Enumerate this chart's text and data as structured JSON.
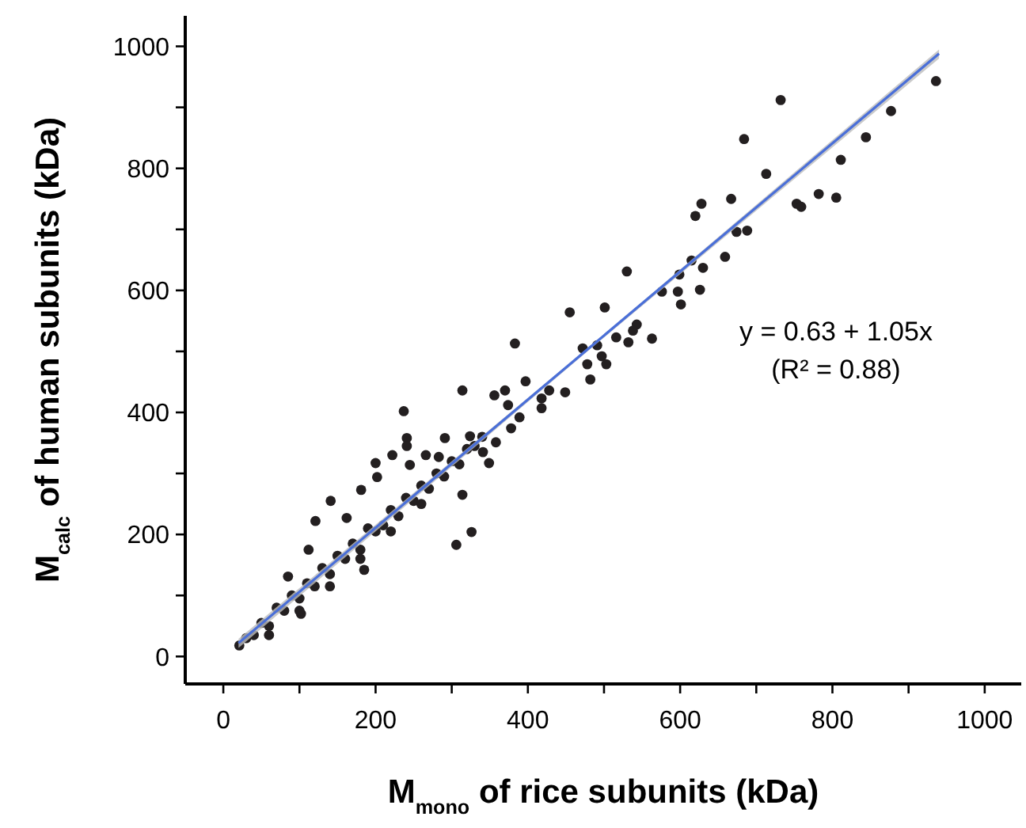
{
  "chart_data": {
    "type": "scatter",
    "xlabel": "M$_{mono}$ of rice subunits (kDa)",
    "ylabel": "M$_{calc}$ of human subunits (kDa)",
    "xlim": [
      -50,
      1048
    ],
    "ylim": [
      -45,
      1050
    ],
    "xticks": [
      0,
      {
        "value": 100,
        "label": null
      },
      200,
      {
        "value": 300,
        "label": null
      },
      400,
      {
        "value": 500,
        "label": null
      },
      600,
      {
        "value": 700,
        "label": null
      },
      800,
      {
        "value": 900,
        "label": null
      },
      1000
    ],
    "yticks": [
      0,
      {
        "value": 100,
        "label": null
      },
      200,
      {
        "value": 300,
        "label": null
      },
      400,
      {
        "value": 500,
        "label": null
      },
      600,
      {
        "value": 700,
        "label": null
      },
      800,
      {
        "value": 900,
        "label": null
      },
      1000
    ],
    "grid": false,
    "annotations": [
      "y = 0.63 + 1.05x",
      "(R² = 0.88)"
    ],
    "series": [
      {
        "marker": "circle",
        "color": "#231f20",
        "x": [
          936,
          732,
          877,
          684,
          844,
          811,
          713,
          782,
          805,
          753,
          759,
          667,
          628,
          620,
          674,
          688,
          615,
          659,
          630,
          599,
          530,
          576,
          597,
          626,
          601,
          501,
          455,
          543,
          538,
          516,
          563,
          532,
          491,
          472,
          383,
          497,
          478,
          503,
          482,
          449,
          428,
          397,
          418,
          418,
          370,
          356,
          374,
          389,
          378,
          358,
          349,
          341,
          314,
          237,
          241,
          241,
          291,
          324,
          222,
          200,
          202,
          245,
          266,
          283,
          181,
          141,
          121,
          162,
          314,
          326,
          306,
          112,
          85,
          185,
          102,
          21,
          30,
          40,
          50,
          60,
          70,
          80,
          90,
          100,
          110,
          120,
          130,
          140,
          150,
          160,
          170,
          180,
          190,
          200,
          210,
          220,
          230,
          240,
          250,
          260,
          270,
          280,
          290,
          300,
          310,
          320,
          330,
          340,
          60,
          100,
          140,
          180,
          220,
          260
        ],
        "values": [
          943,
          912,
          894,
          848,
          851,
          814,
          791,
          758,
          752,
          742,
          737,
          750,
          742,
          722,
          696,
          698,
          649,
          655,
          637,
          626,
          631,
          598,
          598,
          601,
          577,
          572,
          564,
          544,
          534,
          523,
          521,
          515,
          510,
          505,
          513,
          492,
          479,
          479,
          454,
          433,
          436,
          451,
          423,
          407,
          436,
          428,
          412,
          392,
          374,
          351,
          317,
          335,
          436,
          402,
          358,
          345,
          358,
          361,
          330,
          317,
          294,
          314,
          330,
          327,
          273,
          255,
          222,
          227,
          265,
          204,
          183,
          175,
          131,
          142,
          70,
          18,
          30,
          35,
          55,
          50,
          80,
          75,
          100,
          95,
          120,
          115,
          145,
          135,
          165,
          160,
          185,
          175,
          210,
          205,
          215,
          240,
          230,
          260,
          255,
          280,
          275,
          300,
          295,
          320,
          315,
          340,
          345,
          360,
          35,
          75,
          115,
          160,
          205,
          250
        ]
      },
      {
        "type": "line",
        "color": "#4a6fd8",
        "x": [
          20,
          480,
          940
        ],
        "values": [
          22,
          505,
          988
        ],
        "lower": [
          14,
          502,
          980
        ],
        "upper": [
          29,
          507,
          995
        ]
      }
    ]
  }
}
